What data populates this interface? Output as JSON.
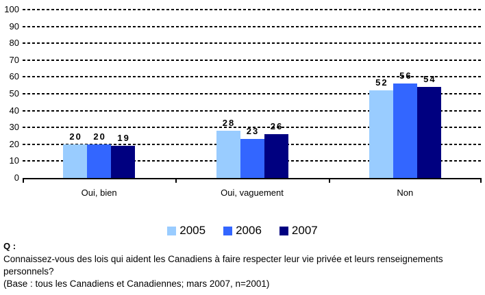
{
  "chart_data": {
    "type": "bar",
    "title": "",
    "categories": [
      "Oui, bien",
      "Oui, vaguement",
      "Non"
    ],
    "series": [
      {
        "name": "2005",
        "color": "#99CCFF",
        "values": [
          20,
          28,
          52
        ]
      },
      {
        "name": "2006",
        "color": "#3366FF",
        "values": [
          20,
          23,
          56
        ]
      },
      {
        "name": "2007",
        "color": "#000080",
        "values": [
          19,
          26,
          54
        ]
      }
    ],
    "xlabel": "",
    "ylabel": "",
    "ylim": [
      0,
      100
    ],
    "ytick_step": 10,
    "yticks": [
      0,
      10,
      20,
      30,
      40,
      50,
      60,
      70,
      80,
      90,
      100
    ],
    "grid": "horizontal-dashed",
    "legend_position": "bottom",
    "data_labels": true
  },
  "footer": {
    "q_label": "Q :",
    "question": "Connaissez-vous des lois qui aident les Canadiens à faire respecter leur vie privée et leurs renseignements personnels?",
    "base": "(Base : tous les Canadiens et Canadiennes; mars 2007, n=2001)"
  }
}
